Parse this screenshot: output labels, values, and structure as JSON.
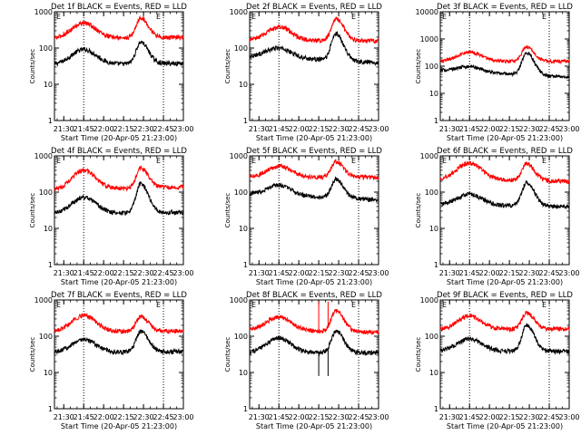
{
  "figure": {
    "x_tick_labels": [
      "21:30",
      "21:45",
      "22:00",
      "22:15",
      "22:30",
      "22:45",
      "23:00"
    ],
    "y_tick_labels": [
      "1",
      "10",
      "100",
      "1000"
    ],
    "ylabel": "Counts/sec",
    "xlabel": "Start Time (20-Apr-05 21:23:00)",
    "colors": {
      "events": "#000000",
      "lld": "#ff0000",
      "frame": "#000000"
    }
  },
  "chart_data": [
    {
      "type": "line",
      "title": "Det 1f BLACK = Events, RED = LLD",
      "corner_marks": [
        "E",
        "E"
      ],
      "ylim": [
        1,
        1000
      ],
      "yscale": "log",
      "series": [
        {
          "role": "events",
          "color": "#000000",
          "start": 35,
          "hump_peak": 90,
          "hump_time": "21:45",
          "flare_peak": 150,
          "flare_time": "22:28",
          "end": 38
        },
        {
          "role": "lld",
          "color": "#ff0000",
          "start": 180,
          "hump_peak": 480,
          "hump_time": "21:45",
          "flare_peak": 700,
          "flare_time": "22:28",
          "end": 200
        }
      ]
    },
    {
      "type": "line",
      "title": "Det 2f BLACK = Events, RED = LLD",
      "corner_marks": [
        "E",
        "E"
      ],
      "ylim": [
        1,
        1000
      ],
      "yscale": "log",
      "series": [
        {
          "role": "events",
          "color": "#000000",
          "start": 60,
          "hump_peak": 110,
          "hump_time": "21:45",
          "flare_peak": 220,
          "flare_time": "22:28",
          "end": 40
        },
        {
          "role": "lld",
          "color": "#ff0000",
          "start": 160,
          "hump_peak": 380,
          "hump_time": "21:45",
          "flare_peak": 650,
          "flare_time": "22:28",
          "end": 160
        }
      ]
    },
    {
      "type": "line",
      "title": "Det 3f BLACK = Events, RED = LLD",
      "corner_marks": [
        "E",
        "E"
      ],
      "ylim": [
        1,
        10000
      ],
      "yscale": "log",
      "series": [
        {
          "role": "events",
          "color": "#000000",
          "start": 70,
          "hump_peak": 110,
          "hump_time": "21:45",
          "flare_peak": 260,
          "flare_time": "22:28",
          "end": 40
        },
        {
          "role": "lld",
          "color": "#ff0000",
          "start": 150,
          "hump_peak": 330,
          "hump_time": "21:45",
          "flare_peak": 520,
          "flare_time": "22:28",
          "end": 150
        }
      ]
    },
    {
      "type": "line",
      "title": "Det 4f BLACK = Events, RED = LLD",
      "corner_marks": [
        "E",
        "E"
      ],
      "ylim": [
        1,
        1000
      ],
      "yscale": "log",
      "series": [
        {
          "role": "events",
          "color": "#000000",
          "start": 25,
          "hump_peak": 70,
          "hump_time": "21:45",
          "flare_peak": 180,
          "flare_time": "22:28",
          "end": 28
        },
        {
          "role": "lld",
          "color": "#ff0000",
          "start": 110,
          "hump_peak": 380,
          "hump_time": "21:45",
          "flare_peak": 500,
          "flare_time": "22:28",
          "end": 140
        }
      ]
    },
    {
      "type": "line",
      "title": "Det 5f BLACK = Events, RED = LLD",
      "corner_marks": [
        "E",
        "E"
      ],
      "ylim": [
        1,
        1000
      ],
      "yscale": "log",
      "series": [
        {
          "role": "events",
          "color": "#000000",
          "start": 90,
          "hump_peak": 170,
          "hump_time": "21:45",
          "flare_peak": 200,
          "flare_time": "22:28",
          "end": 60
        },
        {
          "role": "lld",
          "color": "#ff0000",
          "start": 250,
          "hump_peak": 520,
          "hump_time": "21:45",
          "flare_peak": 700,
          "flare_time": "22:28",
          "end": 260
        }
      ]
    },
    {
      "type": "line",
      "title": "Det 6f BLACK = Events, RED = LLD",
      "corner_marks": [
        "E",
        "E"
      ],
      "ylim": [
        1,
        1000
      ],
      "yscale": "log",
      "series": [
        {
          "role": "events",
          "color": "#000000",
          "start": 45,
          "hump_peak": 90,
          "hump_time": "21:45",
          "flare_peak": 180,
          "flare_time": "22:28",
          "end": 40
        },
        {
          "role": "lld",
          "color": "#ff0000",
          "start": 230,
          "hump_peak": 650,
          "hump_time": "21:45",
          "flare_peak": 600,
          "flare_time": "22:28",
          "end": 200
        }
      ]
    },
    {
      "type": "line",
      "title": "Det 7f BLACK = Events, RED = LLD",
      "corner_marks": [
        "E",
        "E"
      ],
      "ylim": [
        1,
        1000
      ],
      "yscale": "log",
      "series": [
        {
          "role": "events",
          "color": "#000000",
          "start": 35,
          "hump_peak": 80,
          "hump_time": "21:45",
          "flare_peak": 140,
          "flare_time": "22:28",
          "end": 38
        },
        {
          "role": "lld",
          "color": "#ff0000",
          "start": 130,
          "hump_peak": 370,
          "hump_time": "21:45",
          "flare_peak": 360,
          "flare_time": "22:28",
          "end": 140
        }
      ]
    },
    {
      "type": "line",
      "title": "Det 8f BLACK = Events, RED = LLD",
      "corner_marks": [
        "E",
        "E"
      ],
      "ylim": [
        1,
        1000
      ],
      "yscale": "log",
      "series": [
        {
          "role": "events",
          "color": "#000000",
          "start": 35,
          "hump_peak": 90,
          "hump_time": "21:45",
          "flare_peak": 140,
          "flare_time": "22:28",
          "end": 35,
          "dropouts": [
            "22:15",
            "22:22"
          ]
        },
        {
          "role": "lld",
          "color": "#ff0000",
          "start": 150,
          "hump_peak": 350,
          "hump_time": "21:45",
          "flare_peak": 500,
          "flare_time": "22:28",
          "end": 130,
          "dropouts": [
            "22:15",
            "22:22"
          ]
        }
      ]
    },
    {
      "type": "line",
      "title": "Det 9f BLACK = Events, RED = LLD",
      "corner_marks": [
        "E",
        "E"
      ],
      "ylim": [
        1,
        1000
      ],
      "yscale": "log",
      "series": [
        {
          "role": "events",
          "color": "#000000",
          "start": 40,
          "hump_peak": 85,
          "hump_time": "21:45",
          "flare_peak": 200,
          "flare_time": "22:28",
          "end": 38
        },
        {
          "role": "lld",
          "color": "#ff0000",
          "start": 150,
          "hump_peak": 350,
          "hump_time": "21:45",
          "flare_peak": 450,
          "flare_time": "22:28",
          "end": 160
        }
      ]
    }
  ]
}
